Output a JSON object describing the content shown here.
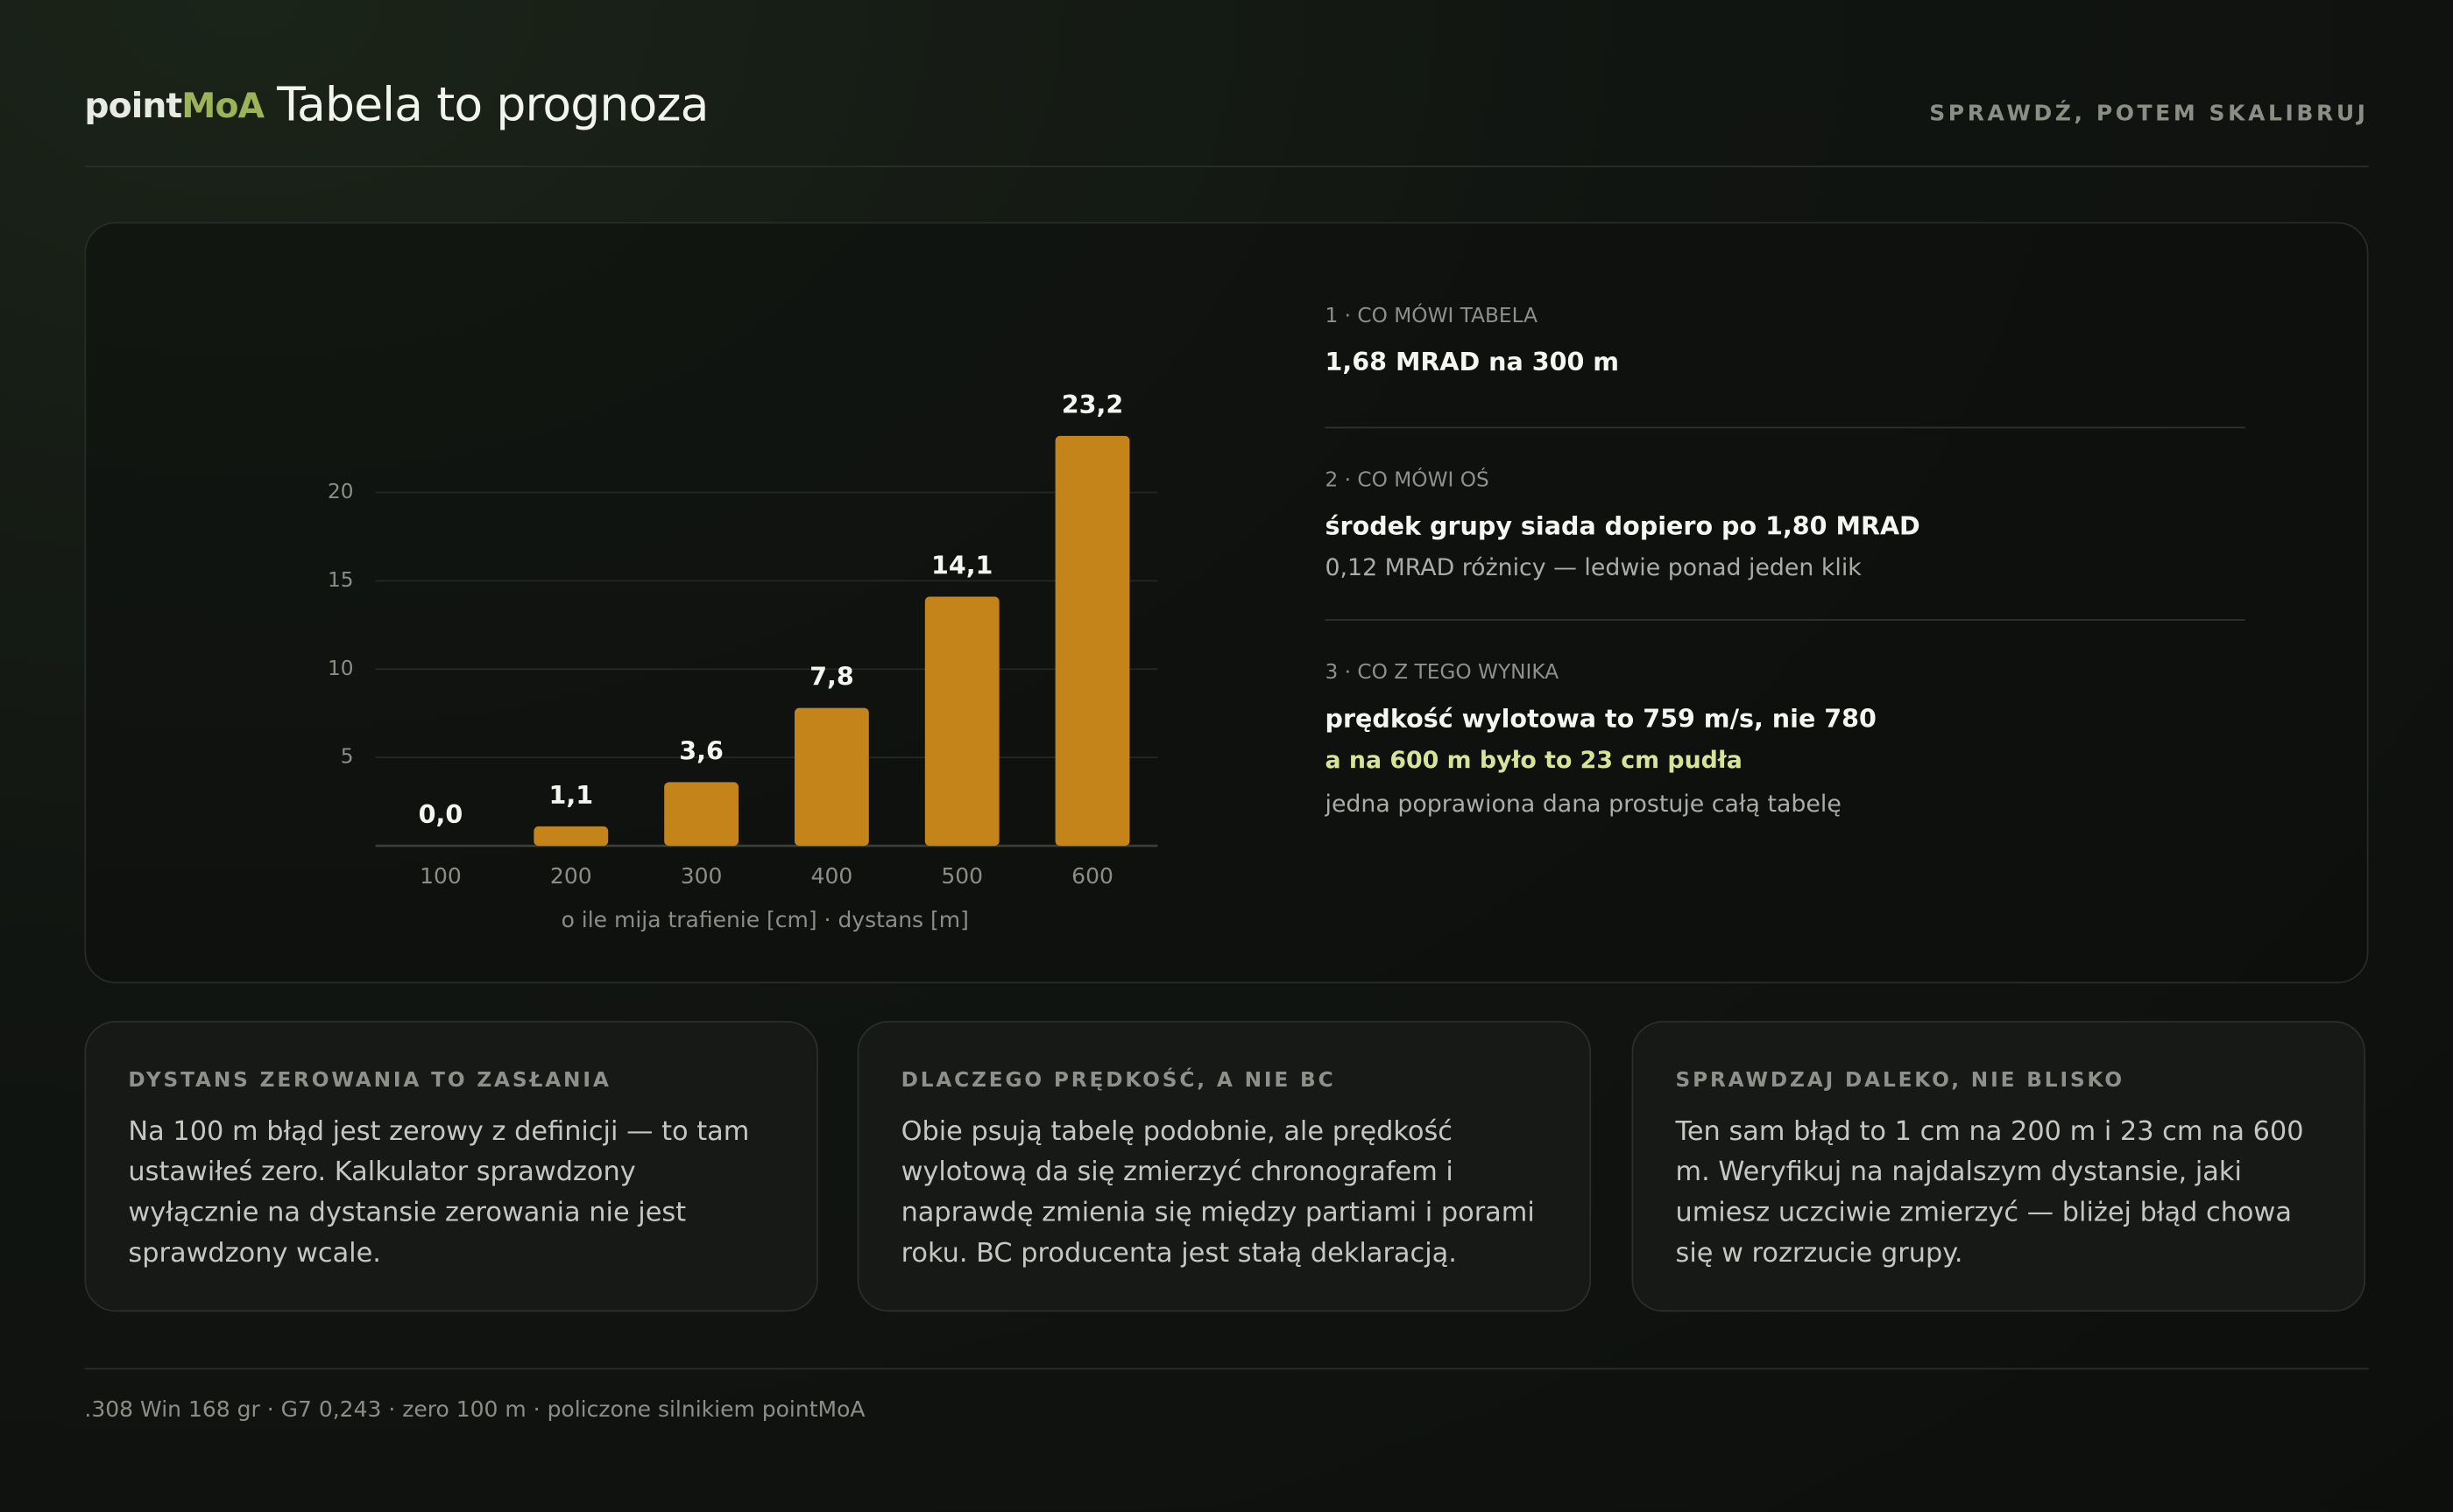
{
  "header": {
    "brand": {
      "a": "point",
      "b": "MoA"
    },
    "title": "Tabela to prognoza",
    "tagline": "SPRAWDŹ, POTEM SKALIBRUJ"
  },
  "chart_data": {
    "type": "bar",
    "x_label": "o ile mija trafienie [cm] · dystans [m]",
    "categories": [
      "100",
      "200",
      "300",
      "400",
      "500",
      "600"
    ],
    "values": [
      0,
      1.1,
      3.6,
      7.8,
      14.1,
      23.2
    ],
    "value_labels": [
      "0,0",
      "1,1",
      "3,6",
      "7,8",
      "14,1",
      "23,2"
    ],
    "color": "#c4841a",
    "ylim": [
      0,
      25
    ],
    "yticks": [
      5,
      10,
      15,
      20
    ],
    "grid": true
  },
  "notes": [
    {
      "label": "1 · CO MÓWI TABELA",
      "headline": "1,68 MRAD na 300 m"
    },
    {
      "label": "2 · CO MÓWI OŚ",
      "headline": "środek grupy siada dopiero po 1,80 MRAD",
      "detail": "0,12 MRAD różnicy — ledwie ponad jeden klik"
    },
    {
      "label": "3 · CO Z TEGO WYNIKA",
      "headline": "prędkość wylotowa to 759 m/s, nie 780",
      "highlight": "a na 600 m było to 23 cm pudła",
      "detail": "jedna poprawiona dana prostuje całą tabelę"
    }
  ],
  "cards": [
    {
      "title": "DYSTANS ZEROWANIA TO ZASŁANIA",
      "body": "Na 100 m błąd jest zerowy z definicji — to tam ustawiłeś zero. Kalkulator sprawdzony wyłącznie na dystansie zerowania nie jest sprawdzony wcale."
    },
    {
      "title": "DLACZEGO PRĘDKOŚĆ, A NIE BC",
      "body": "Obie psują tabelę podobnie, ale prędkość wylotową da się zmierzyć chronografem i naprawdę zmienia się między partiami i porami roku. BC producenta jest stałą deklaracją."
    },
    {
      "title": "SPRAWDZAJ DALEKO, NIE BLISKO",
      "body": "Ten sam błąd to 1 cm na 200 m i 23 cm na 600 m. Weryfikuj na najdalszym dystansie, jaki umiesz uczciwie zmierzyć — bliżej błąd chowa się w rozrzucie grupy."
    }
  ],
  "footer": ".308 Win 168 gr · G7 0,243 · zero 100 m · policzone silnikiem pointMoA"
}
